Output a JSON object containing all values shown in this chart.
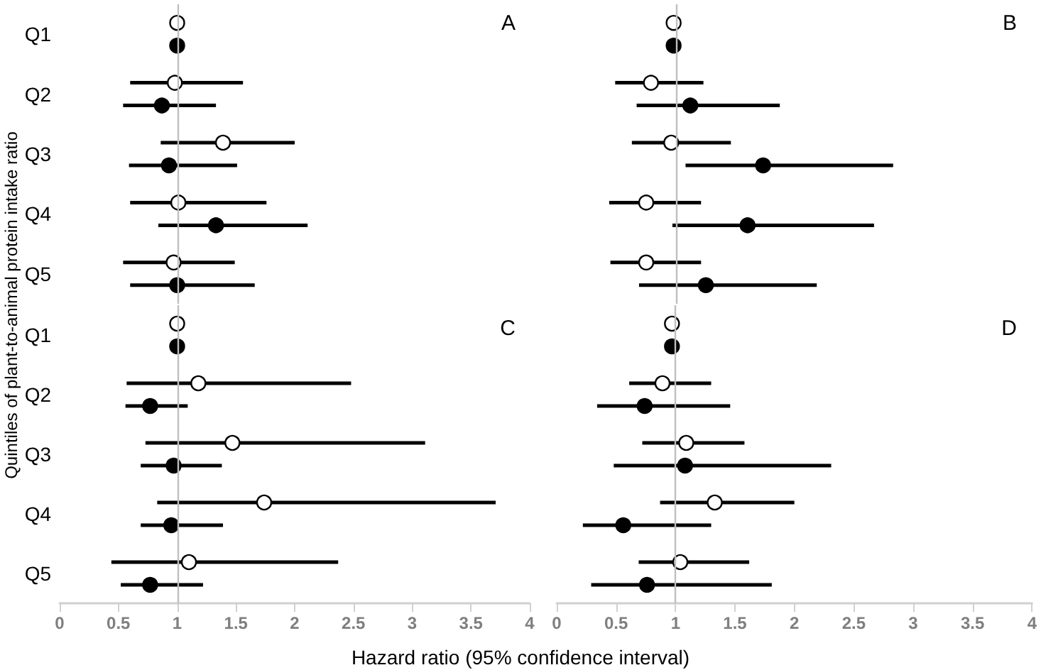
{
  "chart_data": [
    {
      "type": "scatter",
      "orientation": "horizontal",
      "title": "A",
      "ylabel": "Quintiles of plant-to-animal protein intake ratio",
      "categories": [
        "Q1",
        "Q2",
        "Q3",
        "Q4",
        "Q5"
      ],
      "marker": "circle",
      "xlim": [
        0,
        4
      ],
      "xticks": [
        0,
        0.5,
        1,
        1.5,
        2,
        2.5,
        3,
        3.5,
        4
      ],
      "tick_labels": "y",
      "ref_lines": [
        {
          "axis": "x",
          "value": 1,
          "color": "#bfbfbf"
        }
      ],
      "series": [
        {
          "color": "#ffffff",
          "values": [
            1.0,
            0.98,
            1.39,
            1.01,
            0.97
          ],
          "errors": [
            null,
            [
              0.6,
              1.56
            ],
            [
              0.86,
              2.0
            ],
            [
              0.6,
              1.76
            ],
            [
              0.54,
              1.49
            ]
          ]
        },
        {
          "color": "#000000",
          "values": [
            1.0,
            0.87,
            0.93,
            1.33,
            1.0
          ],
          "errors": [
            null,
            [
              0.54,
              1.33
            ],
            [
              0.59,
              1.51
            ],
            [
              0.84,
              2.11
            ],
            [
              0.6,
              1.66
            ]
          ]
        }
      ]
    },
    {
      "type": "scatter",
      "orientation": "horizontal",
      "title": "B",
      "marker": "circle",
      "xlim": [
        0,
        4
      ],
      "xticks": [
        0,
        0.5,
        1,
        1.5,
        2,
        2.5,
        3,
        3.5,
        4
      ],
      "tick_labels": false,
      "ref_lines": [
        {
          "axis": "x",
          "value": 1,
          "color": "#bfbfbf"
        }
      ],
      "series": [
        {
          "color": "#ffffff",
          "values": [
            0.98,
            0.79,
            0.96,
            0.75,
            0.75
          ],
          "errors": [
            null,
            [
              0.49,
              1.23
            ],
            [
              0.63,
              1.46
            ],
            [
              0.44,
              1.21
            ],
            [
              0.45,
              1.21
            ]
          ]
        },
        {
          "color": "#000000",
          "values": [
            0.98,
            1.12,
            1.73,
            1.6,
            1.25
          ],
          "errors": [
            null,
            [
              0.67,
              1.87
            ],
            [
              1.08,
              2.82
            ],
            [
              0.97,
              2.66
            ],
            [
              0.69,
              2.18
            ]
          ]
        }
      ]
    },
    {
      "type": "scatter",
      "orientation": "horizontal",
      "title": "C",
      "xlabel": "Hazard ratio (95% confidence interval)",
      "categories": [
        "Q1",
        "Q2",
        "Q3",
        "Q4",
        "Q5"
      ],
      "marker": "circle",
      "xlim": [
        0,
        4
      ],
      "xticks": [
        0,
        0.5,
        1,
        1.5,
        2,
        2.5,
        3,
        3.5,
        4
      ],
      "ref_lines": [
        {
          "axis": "x",
          "value": 1,
          "color": "#bfbfbf"
        }
      ],
      "series": [
        {
          "color": "#ffffff",
          "values": [
            1.0,
            1.18,
            1.47,
            1.74,
            1.1
          ],
          "errors": [
            null,
            [
              0.57,
              2.48
            ],
            [
              0.73,
              3.11
            ],
            [
              0.83,
              3.71
            ],
            [
              0.44,
              2.37
            ]
          ]
        },
        {
          "color": "#000000",
          "values": [
            1.0,
            0.77,
            0.97,
            0.95,
            0.77
          ],
          "errors": [
            null,
            [
              0.56,
              1.09
            ],
            [
              0.69,
              1.38
            ],
            [
              0.69,
              1.39
            ],
            [
              0.52,
              1.22
            ]
          ]
        }
      ]
    },
    {
      "type": "scatter",
      "orientation": "horizontal",
      "title": "D",
      "marker": "circle",
      "xlim": [
        0,
        4
      ],
      "xticks": [
        0,
        0.5,
        1,
        1.5,
        2,
        2.5,
        3,
        3.5,
        4
      ],
      "tick_labels": "x",
      "ref_lines": [
        {
          "axis": "x",
          "value": 1,
          "color": "#bfbfbf"
        }
      ],
      "series": [
        {
          "color": "#ffffff",
          "values": [
            0.97,
            0.89,
            1.09,
            1.33,
            1.04
          ],
          "errors": [
            null,
            [
              0.61,
              1.3
            ],
            [
              0.72,
              1.58
            ],
            [
              0.87,
              2.0
            ],
            [
              0.69,
              1.62
            ]
          ]
        },
        {
          "color": "#000000",
          "values": [
            0.97,
            0.74,
            1.08,
            0.56,
            0.76
          ],
          "errors": [
            null,
            [
              0.34,
              1.46
            ],
            [
              0.48,
              2.31
            ],
            [
              0.22,
              1.3
            ],
            [
              0.29,
              1.81
            ]
          ]
        }
      ]
    }
  ]
}
